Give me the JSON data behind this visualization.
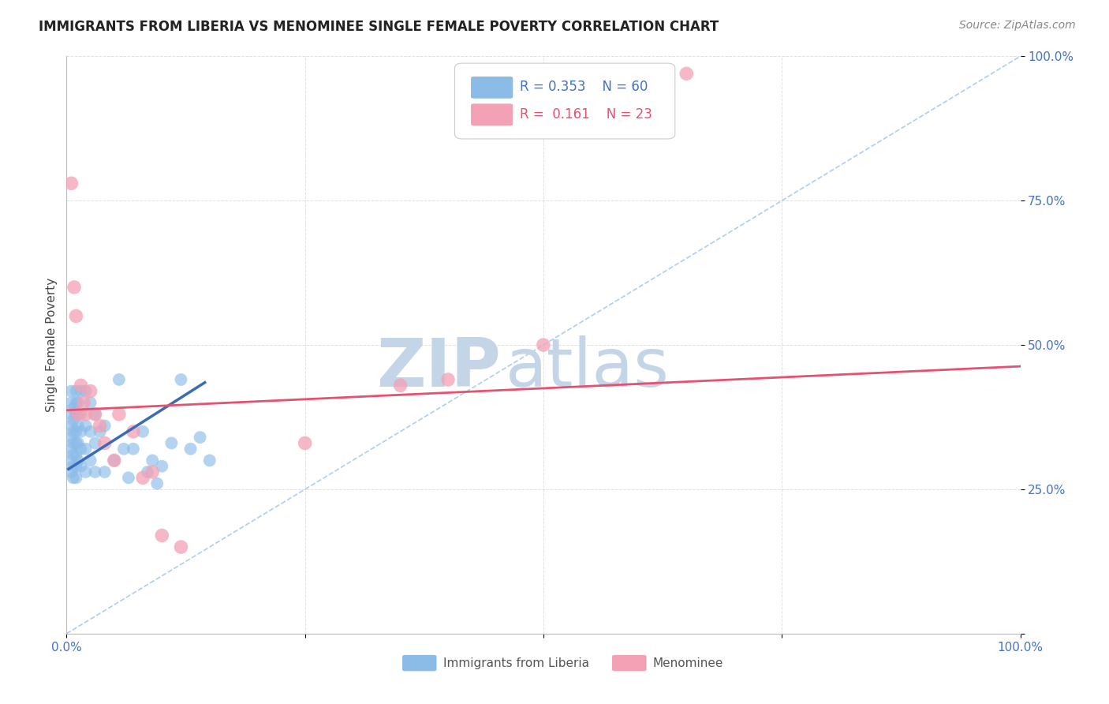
{
  "title": "IMMIGRANTS FROM LIBERIA VS MENOMINEE SINGLE FEMALE POVERTY CORRELATION CHART",
  "source": "Source: ZipAtlas.com",
  "ylabel": "Single Female Poverty",
  "legend_label1": "Immigrants from Liberia",
  "legend_label2": "Menominee",
  "r1": "0.353",
  "n1": "60",
  "r2": "0.161",
  "n2": "23",
  "color1": "#8BBCE8",
  "color2": "#F4A0B5",
  "line1_color": "#3A6CB5",
  "line2_color": "#E85070",
  "diag_color": "#B0CCEE",
  "watermark_zip_color": "#C5D5E8",
  "watermark_atlas_color": "#C5D5E8",
  "xlim": [
    0,
    1
  ],
  "ylim": [
    0,
    1
  ],
  "xtick_positions": [
    0.0,
    0.25,
    0.5,
    0.75,
    1.0
  ],
  "xtick_labels": [
    "0.0%",
    "",
    "",
    "",
    "100.0%"
  ],
  "ytick_positions": [
    0.0,
    0.25,
    0.5,
    0.75,
    1.0
  ],
  "ytick_labels": [
    "",
    "25.0%",
    "50.0%",
    "75.0%",
    "100.0%"
  ],
  "blue_points_x": [
    0.005,
    0.005,
    0.005,
    0.005,
    0.005,
    0.005,
    0.005,
    0.005,
    0.007,
    0.007,
    0.007,
    0.007,
    0.007,
    0.007,
    0.007,
    0.01,
    0.01,
    0.01,
    0.01,
    0.01,
    0.01,
    0.01,
    0.01,
    0.012,
    0.012,
    0.012,
    0.012,
    0.015,
    0.015,
    0.015,
    0.015,
    0.015,
    0.02,
    0.02,
    0.02,
    0.02,
    0.025,
    0.025,
    0.025,
    0.03,
    0.03,
    0.03,
    0.035,
    0.04,
    0.04,
    0.05,
    0.055,
    0.06,
    0.065,
    0.07,
    0.08,
    0.085,
    0.09,
    0.095,
    0.1,
    0.11,
    0.12,
    0.13,
    0.14,
    0.15
  ],
  "blue_points_y": [
    0.28,
    0.3,
    0.32,
    0.34,
    0.36,
    0.38,
    0.4,
    0.42,
    0.27,
    0.29,
    0.31,
    0.33,
    0.35,
    0.37,
    0.39,
    0.27,
    0.29,
    0.31,
    0.33,
    0.35,
    0.38,
    0.4,
    0.42,
    0.3,
    0.33,
    0.36,
    0.4,
    0.29,
    0.32,
    0.35,
    0.38,
    0.42,
    0.28,
    0.32,
    0.36,
    0.42,
    0.3,
    0.35,
    0.4,
    0.28,
    0.33,
    0.38,
    0.35,
    0.28,
    0.36,
    0.3,
    0.44,
    0.32,
    0.27,
    0.32,
    0.35,
    0.28,
    0.3,
    0.26,
    0.29,
    0.33,
    0.44,
    0.32,
    0.34,
    0.3
  ],
  "pink_points_x": [
    0.005,
    0.008,
    0.01,
    0.012,
    0.015,
    0.018,
    0.02,
    0.025,
    0.03,
    0.035,
    0.04,
    0.05,
    0.055,
    0.07,
    0.08,
    0.09,
    0.1,
    0.12,
    0.25,
    0.35,
    0.4,
    0.5,
    0.65
  ],
  "pink_points_y": [
    0.78,
    0.6,
    0.55,
    0.38,
    0.43,
    0.4,
    0.38,
    0.42,
    0.38,
    0.36,
    0.33,
    0.3,
    0.38,
    0.35,
    0.27,
    0.28,
    0.17,
    0.15,
    0.33,
    0.43,
    0.44,
    0.5,
    0.97
  ],
  "blue_line_x": [
    0.002,
    0.145
  ],
  "blue_line_y": [
    0.285,
    0.435
  ],
  "pink_line_x": [
    0.0,
    1.0
  ],
  "pink_line_y": [
    0.387,
    0.463
  ],
  "diag_line_x": [
    0.0,
    1.0
  ],
  "diag_line_y": [
    0.0,
    1.0
  ],
  "background": "#FFFFFF",
  "grid_color": "#CCCCCC",
  "tick_label_color": "#4472C4",
  "title_color": "#222222",
  "source_color": "#888888",
  "ylabel_color": "#444444",
  "legend_border_color": "#CCCCCC",
  "bottom_legend_text_color": "#555555"
}
